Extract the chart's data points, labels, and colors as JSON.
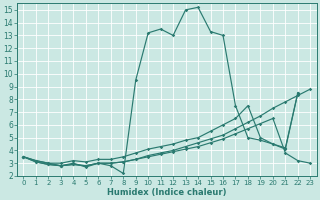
{
  "xlabel": "Humidex (Indice chaleur)",
  "xlim": [
    -0.5,
    23.5
  ],
  "ylim": [
    2,
    15.5
  ],
  "yticks": [
    2,
    3,
    4,
    5,
    6,
    7,
    8,
    9,
    10,
    11,
    12,
    13,
    14,
    15
  ],
  "xticks": [
    0,
    1,
    2,
    3,
    4,
    5,
    6,
    7,
    8,
    9,
    10,
    11,
    12,
    13,
    14,
    15,
    16,
    17,
    18,
    19,
    20,
    21,
    22,
    23
  ],
  "bg_color": "#cbe8e3",
  "grid_color": "#b0d8d0",
  "line_color": "#2a7a70",
  "lines": [
    {
      "x": [
        0,
        1,
        2,
        3,
        4,
        5,
        6,
        7,
        8,
        9,
        10,
        11,
        12,
        13,
        14,
        15,
        16,
        17,
        18,
        19,
        20,
        21,
        22
      ],
      "y": [
        3.5,
        3.2,
        3.0,
        2.8,
        3.0,
        2.7,
        3.0,
        2.8,
        2.2,
        9.5,
        13.2,
        13.5,
        13.0,
        15.0,
        15.2,
        13.3,
        13.0,
        7.5,
        5.0,
        4.8,
        4.5,
        4.1,
        8.5
      ]
    },
    {
      "x": [
        0,
        1,
        2,
        3,
        4,
        5,
        6,
        7,
        8,
        9,
        10,
        11,
        12,
        13,
        14,
        15,
        16,
        17,
        18,
        19,
        20,
        21,
        22
      ],
      "y": [
        3.5,
        3.2,
        3.0,
        3.0,
        3.2,
        3.1,
        3.3,
        3.3,
        3.5,
        3.8,
        4.1,
        4.3,
        4.5,
        4.8,
        5.0,
        5.5,
        6.0,
        6.5,
        7.5,
        5.0,
        4.5,
        4.2,
        8.5
      ]
    },
    {
      "x": [
        0,
        1,
        2,
        3,
        4,
        5,
        6,
        7,
        8,
        9,
        10,
        11,
        12,
        13,
        14,
        15,
        16,
        17,
        18,
        19,
        20,
        21,
        22,
        23
      ],
      "y": [
        3.5,
        3.1,
        2.9,
        2.8,
        2.9,
        2.8,
        3.0,
        3.0,
        3.1,
        3.3,
        3.6,
        3.8,
        4.0,
        4.3,
        4.6,
        4.9,
        5.2,
        5.7,
        6.2,
        6.7,
        7.3,
        7.8,
        8.3,
        8.8
      ]
    },
    {
      "x": [
        0,
        1,
        2,
        3,
        4,
        5,
        6,
        7,
        8,
        9,
        10,
        11,
        12,
        13,
        14,
        15,
        16,
        17,
        18,
        19,
        20,
        21,
        22,
        23
      ],
      "y": [
        3.5,
        3.1,
        2.9,
        2.8,
        2.9,
        2.8,
        3.0,
        3.0,
        3.1,
        3.3,
        3.5,
        3.7,
        3.9,
        4.1,
        4.3,
        4.6,
        4.9,
        5.3,
        5.7,
        6.1,
        6.5,
        3.8,
        3.2,
        3.0
      ]
    }
  ]
}
